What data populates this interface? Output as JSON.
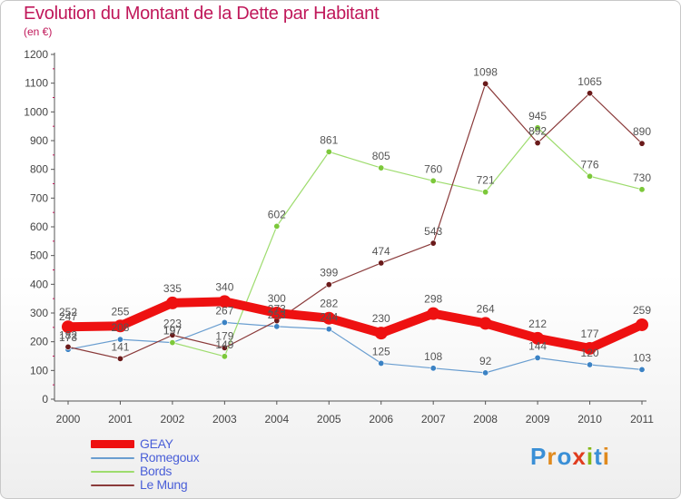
{
  "title": "Evolution du Montant de la Dette par Habitant",
  "subtitle": "(en €)",
  "logo": {
    "text": "Proxiti",
    "colors": [
      "#3a8fd6",
      "#e08a1e",
      "#3a8fd6",
      "#e03c1e",
      "#86b817",
      "#3a8fd6",
      "#e08a1e"
    ]
  },
  "colors": {
    "title": "#c0185a",
    "axis": "#555555",
    "tick_label": "#444444",
    "data_label": "#555555",
    "legend_text": "#4a5fd8"
  },
  "chart_data": {
    "type": "line",
    "title": "Evolution du Montant de la Dette par Habitant",
    "subtitle": "(en €)",
    "xlabel": "",
    "ylabel": "",
    "x": [
      "2000",
      "2001",
      "2002",
      "2003",
      "2004",
      "2005",
      "2006",
      "2007",
      "2008",
      "2009",
      "2010",
      "2011"
    ],
    "ylim": [
      0,
      1200
    ],
    "yticks": [
      0,
      100,
      200,
      300,
      400,
      500,
      600,
      700,
      800,
      900,
      1000,
      1100,
      1200
    ],
    "grid": false,
    "legend_position": "bottom-left",
    "series": [
      {
        "name": "GEAY",
        "color": "#ee1111",
        "line_width": 10,
        "marker_color": "#ee1111",
        "values": [
          252,
          255,
          335,
          340,
          300,
          282,
          230,
          298,
          264,
          212,
          177,
          259
        ],
        "labels": [
          "252",
          "255",
          "335",
          "340",
          "300",
          "282",
          "230",
          "298",
          "264",
          "212",
          "177",
          "259"
        ]
      },
      {
        "name": "Romegoux",
        "color": "#6a9ed0",
        "line_width": 1.2,
        "marker_color": "#3b82c4",
        "values": [
          173,
          208,
          197,
          267,
          253,
          244,
          125,
          108,
          92,
          144,
          120,
          103
        ],
        "labels": [
          "173",
          "208",
          "197",
          "267",
          "253",
          "244",
          "125",
          "108",
          "92",
          "144",
          "120",
          "103"
        ]
      },
      {
        "name": "Bords",
        "color": "#9edc6e",
        "line_width": 1.2,
        "marker_color": "#7cc83a",
        "values": [
          247,
          null,
          197,
          149,
          602,
          861,
          805,
          760,
          721,
          945,
          776,
          730
        ],
        "labels": [
          "247",
          "",
          "197",
          "149",
          "602",
          "861",
          "805",
          "760",
          "721",
          "945",
          "776",
          "730"
        ]
      },
      {
        "name": "Le Mung",
        "color": "#8a3a3a",
        "line_width": 1.2,
        "marker_color": "#6a1a1a",
        "values": [
          182,
          141,
          223,
          179,
          273,
          399,
          474,
          543,
          1098,
          892,
          1065,
          890
        ],
        "labels": [
          "182",
          "141",
          "223",
          "179",
          "273",
          "399",
          "474",
          "543",
          "1098",
          "892",
          "1065",
          "890"
        ]
      }
    ]
  }
}
